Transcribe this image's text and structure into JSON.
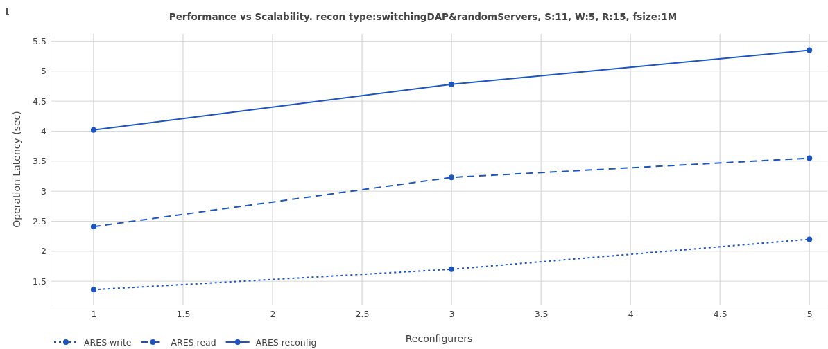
{
  "chart_data": {
    "type": "line",
    "title": "Performance vs Scalability. recon type:switchingDAP&randomServers, S:11, W:5, R:15, fsize:1M",
    "xlabel": "Reconfigurers",
    "ylabel": "Operation Latency (sec)",
    "x": [
      1,
      3,
      5
    ],
    "series": [
      {
        "name": "ARES write",
        "color": "#1c55c0",
        "line_style": "dotted",
        "values": [
          1.36,
          1.7,
          2.2
        ]
      },
      {
        "name": "ARES read",
        "color": "#1c55c0",
        "line_style": "dashed",
        "values": [
          2.41,
          3.23,
          3.55
        ]
      },
      {
        "name": "ARES reconfig",
        "color": "#1c55c0",
        "line_style": "solid",
        "values": [
          4.02,
          4.78,
          5.35
        ]
      }
    ],
    "xlim": [
      0.76,
      5.1
    ],
    "ylim": [
      1.11,
      5.62
    ],
    "xticks": [
      1,
      1.5,
      2,
      2.5,
      3,
      3.5,
      4,
      4.5,
      5
    ],
    "yticks": [
      1.5,
      2,
      2.5,
      3,
      3.5,
      4,
      4.5,
      5,
      5.5
    ],
    "grid": true,
    "legend": "bottom left",
    "marker": "circle"
  }
}
